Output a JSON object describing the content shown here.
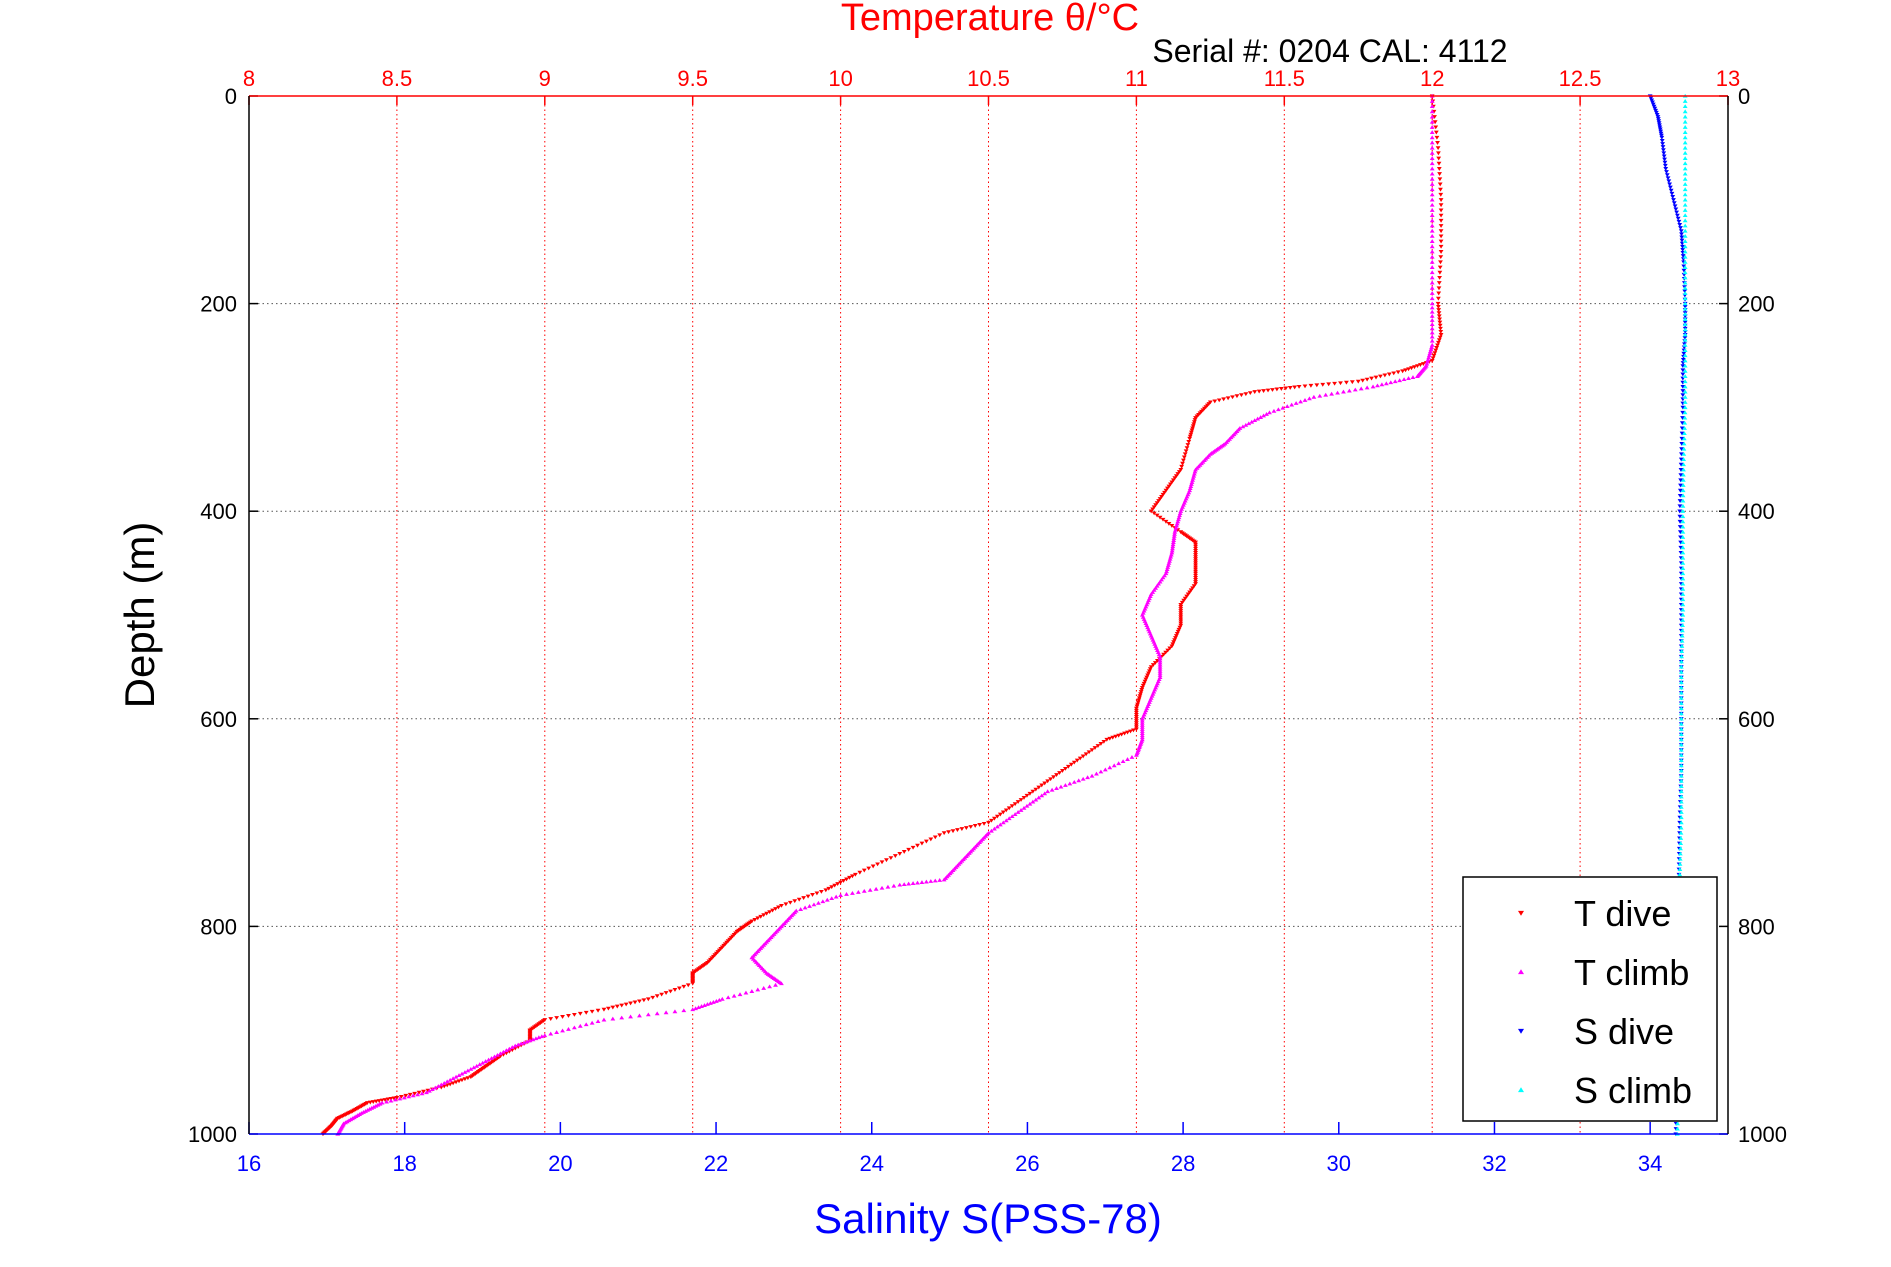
{
  "chart_data": {
    "type": "scatter",
    "title": "Temperature θ/°C",
    "subtitle": "Serial #: 0204  CAL: 4112",
    "ylabel": "Depth (m)",
    "xlabel": "Salinity S(PSS-78)",
    "ylim": [
      1000,
      0
    ],
    "y_inverted": true,
    "y_ticks": [
      "0",
      "200",
      "400",
      "600",
      "800",
      "1000"
    ],
    "temperature_axis": {
      "position": "top",
      "range": [
        8,
        13
      ],
      "ticks": [
        "8",
        "8.5",
        "9",
        "9.5",
        "10",
        "10.5",
        "11",
        "11.5",
        "12",
        "12.5",
        "13"
      ]
    },
    "salinity_axis": {
      "position": "bottom",
      "range": [
        16,
        35
      ],
      "ticks": [
        "16",
        "18",
        "20",
        "22",
        "24",
        "26",
        "28",
        "30",
        "32",
        "34"
      ]
    },
    "grid": true,
    "legend_position": "bottom-right",
    "colors": {
      "temperature": "#ff0000",
      "salinity": "#0000ff",
      "t_dive": "#ff0000",
      "t_climb": "#ff00ff",
      "s_dive": "#0000ff",
      "s_climb": "#00ffff"
    },
    "series": [
      {
        "name": "T dive",
        "axis": "temperature",
        "marker": "triangle-down",
        "points": [
          [
            12.0,
            0
          ],
          [
            12.02,
            50
          ],
          [
            12.03,
            100
          ],
          [
            12.03,
            150
          ],
          [
            12.02,
            200
          ],
          [
            12.03,
            230
          ],
          [
            12.0,
            255
          ],
          [
            11.9,
            265
          ],
          [
            11.75,
            275
          ],
          [
            11.55,
            280
          ],
          [
            11.4,
            285
          ],
          [
            11.25,
            295
          ],
          [
            11.2,
            310
          ],
          [
            11.18,
            330
          ],
          [
            11.15,
            360
          ],
          [
            11.1,
            380
          ],
          [
            11.05,
            400
          ],
          [
            11.15,
            420
          ],
          [
            11.2,
            430
          ],
          [
            11.2,
            450
          ],
          [
            11.2,
            470
          ],
          [
            11.15,
            490
          ],
          [
            11.15,
            510
          ],
          [
            11.12,
            530
          ],
          [
            11.05,
            550
          ],
          [
            11.02,
            570
          ],
          [
            11.0,
            590
          ],
          [
            11.0,
            610
          ],
          [
            10.9,
            620
          ],
          [
            10.8,
            640
          ],
          [
            10.7,
            660
          ],
          [
            10.6,
            680
          ],
          [
            10.5,
            700
          ],
          [
            10.35,
            710
          ],
          [
            10.2,
            730
          ],
          [
            10.05,
            750
          ],
          [
            9.95,
            765
          ],
          [
            9.8,
            780
          ],
          [
            9.7,
            795
          ],
          [
            9.65,
            805
          ],
          [
            9.6,
            820
          ],
          [
            9.55,
            835
          ],
          [
            9.5,
            845
          ],
          [
            9.5,
            855
          ],
          [
            9.35,
            870
          ],
          [
            9.2,
            880
          ],
          [
            9.0,
            890
          ],
          [
            8.95,
            900
          ],
          [
            8.95,
            910
          ],
          [
            8.85,
            925
          ],
          [
            8.8,
            935
          ],
          [
            8.75,
            945
          ],
          [
            8.65,
            955
          ],
          [
            8.5,
            965
          ],
          [
            8.4,
            970
          ],
          [
            8.35,
            978
          ],
          [
            8.3,
            985
          ],
          [
            8.28,
            992
          ],
          [
            8.25,
            1000
          ]
        ]
      },
      {
        "name": "T climb",
        "axis": "temperature",
        "marker": "triangle-up",
        "points": [
          [
            12.0,
            0
          ],
          [
            12.0,
            50
          ],
          [
            12.0,
            100
          ],
          [
            12.0,
            150
          ],
          [
            12.0,
            200
          ],
          [
            12.0,
            240
          ],
          [
            11.98,
            260
          ],
          [
            11.95,
            270
          ],
          [
            11.8,
            280
          ],
          [
            11.6,
            290
          ],
          [
            11.45,
            305
          ],
          [
            11.35,
            320
          ],
          [
            11.3,
            335
          ],
          [
            11.25,
            345
          ],
          [
            11.2,
            360
          ],
          [
            11.18,
            380
          ],
          [
            11.15,
            400
          ],
          [
            11.13,
            420
          ],
          [
            11.12,
            440
          ],
          [
            11.1,
            460
          ],
          [
            11.05,
            480
          ],
          [
            11.02,
            500
          ],
          [
            11.05,
            520
          ],
          [
            11.08,
            540
          ],
          [
            11.08,
            560
          ],
          [
            11.05,
            580
          ],
          [
            11.02,
            600
          ],
          [
            11.02,
            620
          ],
          [
            11.0,
            635
          ],
          [
            10.85,
            655
          ],
          [
            10.7,
            670
          ],
          [
            10.6,
            690
          ],
          [
            10.5,
            710
          ],
          [
            10.45,
            725
          ],
          [
            10.4,
            740
          ],
          [
            10.35,
            755
          ],
          [
            10.2,
            760
          ],
          [
            10.0,
            770
          ],
          [
            9.85,
            785
          ],
          [
            9.8,
            800
          ],
          [
            9.75,
            815
          ],
          [
            9.7,
            830
          ],
          [
            9.75,
            845
          ],
          [
            9.8,
            855
          ],
          [
            9.6,
            870
          ],
          [
            9.5,
            880
          ],
          [
            9.2,
            890
          ],
          [
            9.0,
            905
          ],
          [
            8.9,
            915
          ],
          [
            8.8,
            930
          ],
          [
            8.7,
            945
          ],
          [
            8.6,
            960
          ],
          [
            8.45,
            970
          ],
          [
            8.38,
            980
          ],
          [
            8.32,
            990
          ],
          [
            8.3,
            1000
          ]
        ]
      },
      {
        "name": "S dive",
        "axis": "salinity",
        "marker": "triangle-down",
        "points": [
          [
            34.0,
            0
          ],
          [
            34.1,
            20
          ],
          [
            34.15,
            40
          ],
          [
            34.2,
            70
          ],
          [
            34.3,
            100
          ],
          [
            34.4,
            130
          ],
          [
            34.43,
            160
          ],
          [
            34.45,
            200
          ],
          [
            34.45,
            230
          ],
          [
            34.42,
            260
          ],
          [
            34.42,
            300
          ],
          [
            34.4,
            350
          ],
          [
            34.38,
            400
          ],
          [
            34.4,
            450
          ],
          [
            34.4,
            500
          ],
          [
            34.4,
            550
          ],
          [
            34.4,
            600
          ],
          [
            34.4,
            650
          ],
          [
            34.38,
            700
          ],
          [
            34.37,
            750
          ],
          [
            34.38,
            800
          ],
          [
            34.38,
            850
          ],
          [
            34.37,
            900
          ],
          [
            34.35,
            950
          ],
          [
            34.33,
            1000
          ]
        ]
      },
      {
        "name": "S climb",
        "axis": "salinity",
        "marker": "triangle-up",
        "points": [
          [
            34.45,
            0
          ],
          [
            34.45,
            50
          ],
          [
            34.45,
            100
          ],
          [
            34.45,
            150
          ],
          [
            34.45,
            200
          ],
          [
            34.45,
            250
          ],
          [
            34.45,
            300
          ],
          [
            34.43,
            350
          ],
          [
            34.42,
            400
          ],
          [
            34.42,
            450
          ],
          [
            34.42,
            500
          ],
          [
            34.4,
            550
          ],
          [
            34.4,
            600
          ],
          [
            34.4,
            650
          ],
          [
            34.4,
            700
          ],
          [
            34.38,
            750
          ],
          [
            34.38,
            800
          ],
          [
            34.38,
            850
          ],
          [
            34.37,
            900
          ],
          [
            34.36,
            950
          ],
          [
            34.35,
            1000
          ]
        ]
      }
    ]
  }
}
